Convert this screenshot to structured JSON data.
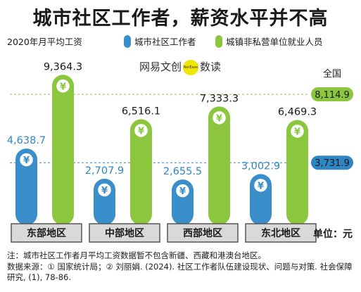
{
  "title": "城市社区工作者，薪资水平并不高",
  "subtitle": "2020年月平均工资",
  "brand": {
    "left": "网易",
    "mid": "文创",
    "logo": "NetEase",
    "right": "数读"
  },
  "unit": "单位：元",
  "national_label": "全国",
  "footnote": {
    "note": "注：城市社区工作者月平均工资数据暂不包含新疆、西藏和港澳台地区。",
    "source": "数据来源：① 国家统计局；② 刘丽娟. (2024). 社区工作者队伍建设现状、问题与对策. 社会保障研究, (1), 78-86."
  },
  "colors": {
    "blue": "#3a8fca",
    "green": "#8cc63f",
    "value_blue": "#2f86c4",
    "region_box": "#d9d9d9"
  },
  "chart_data": {
    "type": "bar",
    "categories": [
      "东部地区",
      "中部地区",
      "西部地区",
      "东北地区"
    ],
    "series": [
      {
        "name": "城市社区工作者",
        "values": [
          4638.7,
          2707.9,
          2655.5,
          3002.9
        ]
      },
      {
        "name": "城镇非私营单位就业人员",
        "values": [
          9364.3,
          6516.1,
          7333.3,
          6469.3
        ]
      }
    ],
    "value_labels": [
      [
        "4,638.7",
        "2,707.9",
        "2,655.5",
        "3,002.9"
      ],
      [
        "9,364.3",
        "6,516.1",
        "7,333.3",
        "6,469.3"
      ]
    ],
    "reference_lines": [
      {
        "series": "城镇非私营单位就业人员",
        "value": 8114.9,
        "label": "8,114.9"
      },
      {
        "series": "城市社区工作者",
        "value": 3731.9,
        "label": "3,731.9"
      }
    ],
    "icon": "yuan-coin-icon",
    "ylim": [
      0,
      10000
    ]
  }
}
